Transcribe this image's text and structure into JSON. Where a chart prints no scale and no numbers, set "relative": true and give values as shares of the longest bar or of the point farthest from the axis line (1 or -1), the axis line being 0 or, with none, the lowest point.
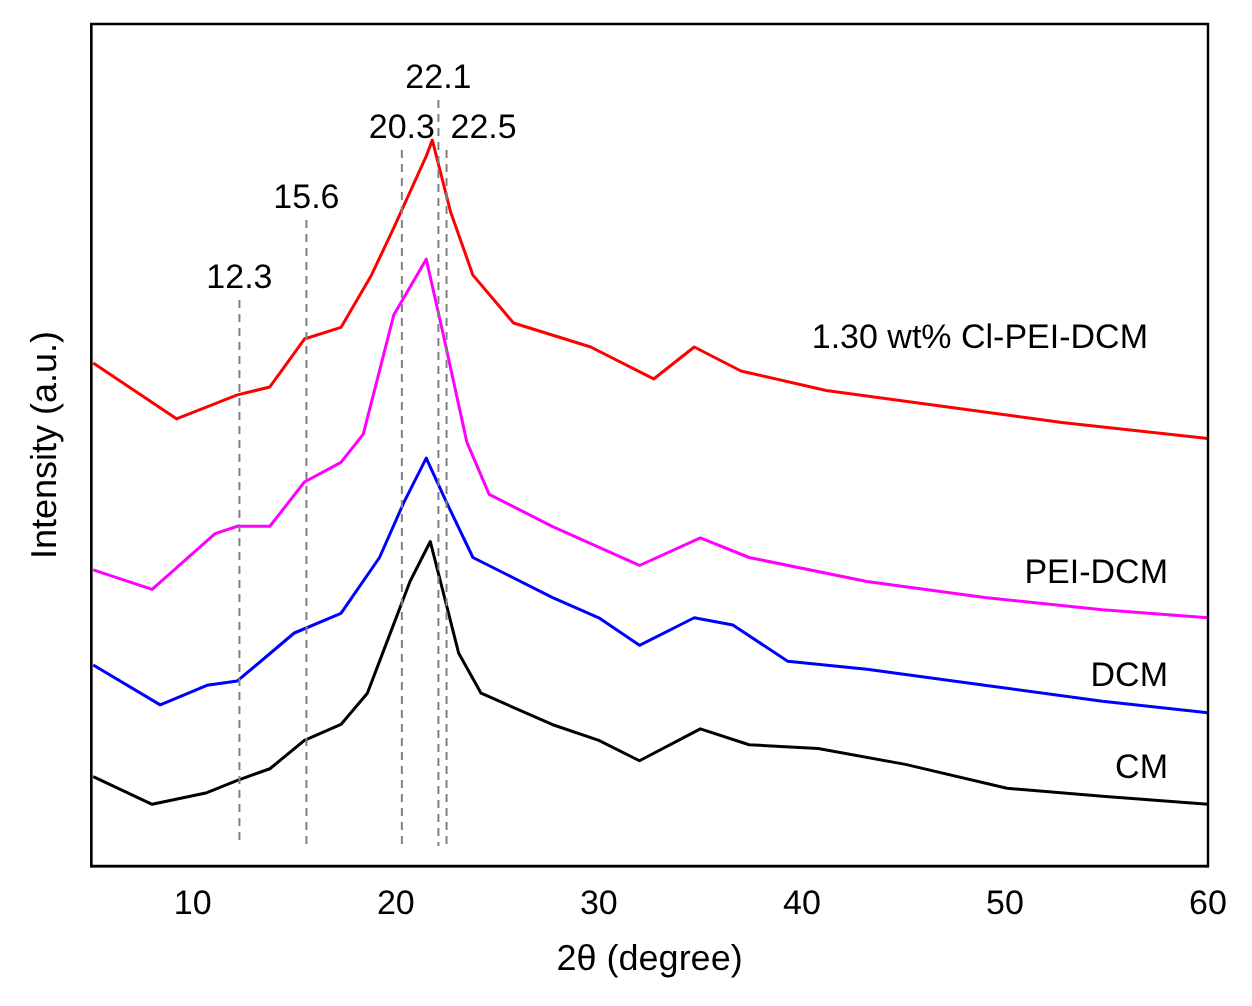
{
  "chart_data": {
    "type": "line",
    "relative": true,
    "xlabel": "2θ (degree)",
    "ylabel": "Intensity (a.u.)",
    "xlim": [
      5,
      60
    ],
    "xticks": [
      10,
      20,
      30,
      40,
      50,
      60
    ],
    "grid": false,
    "legend": false,
    "marker": "none",
    "line_style": "solid",
    "tick_labels": "x",
    "ref_lines": [
      {
        "axis": "x",
        "value": 12.3,
        "label": "12.3",
        "color": "#808080",
        "line_style": "dashed"
      },
      {
        "axis": "x",
        "value": 15.6,
        "label": "15.6",
        "color": "#808080",
        "line_style": "dashed"
      },
      {
        "axis": "x",
        "value": 20.3,
        "label": "20.3",
        "color": "#808080",
        "line_style": "dashed"
      },
      {
        "axis": "x",
        "value": 22.1,
        "label": "22.1",
        "color": "#808080",
        "line_style": "dashed"
      },
      {
        "axis": "x",
        "value": 22.5,
        "label": "22.5",
        "color": "#808080",
        "line_style": "dashed"
      }
    ],
    "series": [
      {
        "name": "1.30 wt% Cl-PEI-DCM",
        "color": "#ff0000",
        "x": [
          5.1,
          9.2,
          12.2,
          13.8,
          15.5,
          17.3,
          18.8,
          19.9,
          21.5,
          21.8,
          22.7,
          23.8,
          25.8,
          29.6,
          32.7,
          34.7,
          37.0,
          41.2,
          47.0,
          52.8,
          60
        ],
        "values": [
          0.693,
          0.616,
          0.649,
          0.66,
          0.726,
          0.742,
          0.814,
          0.879,
          0.978,
          1,
          0.901,
          0.814,
          0.748,
          0.715,
          0.671,
          0.715,
          0.682,
          0.655,
          0.633,
          0.611,
          0.589
        ]
      },
      {
        "name": "PEI-DCM",
        "color": "#ff00ff",
        "x": [
          5.1,
          8.0,
          11.1,
          12.2,
          13.8,
          15.5,
          17.3,
          18.4,
          19.9,
          21.5,
          22.3,
          23.5,
          24.6,
          27.7,
          32.0,
          35.0,
          37.4,
          43.2,
          49.0,
          54.8,
          60
        ],
        "values": [
          0.408,
          0.381,
          0.458,
          0.468,
          0.468,
          0.529,
          0.556,
          0.595,
          0.759,
          0.836,
          0.737,
          0.584,
          0.512,
          0.468,
          0.414,
          0.452,
          0.425,
          0.392,
          0.37,
          0.353,
          0.342
        ]
      },
      {
        "name": "DCM",
        "color": "#0000ff",
        "x": [
          5.1,
          8.4,
          10.7,
          12.2,
          15.0,
          17.3,
          19.2,
          20.4,
          21.5,
          22.5,
          23.8,
          27.7,
          30.0,
          32.0,
          34.7,
          36.6,
          39.3,
          43.2,
          49.0,
          54.8,
          60
        ],
        "values": [
          0.277,
          0.222,
          0.249,
          0.255,
          0.321,
          0.348,
          0.425,
          0.501,
          0.562,
          0.501,
          0.425,
          0.37,
          0.342,
          0.304,
          0.342,
          0.332,
          0.282,
          0.271,
          0.249,
          0.227,
          0.211
        ]
      },
      {
        "name": "CM",
        "color": "#000000",
        "x": [
          5.1,
          8.0,
          10.7,
          12.2,
          13.8,
          15.5,
          17.3,
          18.6,
          19.8,
          20.7,
          21.7,
          22.3,
          23.1,
          24.2,
          27.7,
          30.0,
          32.0,
          35.0,
          37.4,
          40.8,
          45.1,
          50.1,
          54.8,
          60
        ],
        "values": [
          0.123,
          0.085,
          0.101,
          0.118,
          0.134,
          0.173,
          0.195,
          0.238,
          0.326,
          0.392,
          0.447,
          0.381,
          0.293,
          0.238,
          0.195,
          0.173,
          0.145,
          0.189,
          0.167,
          0.162,
          0.14,
          0.107,
          0.096,
          0.085
        ]
      }
    ]
  }
}
